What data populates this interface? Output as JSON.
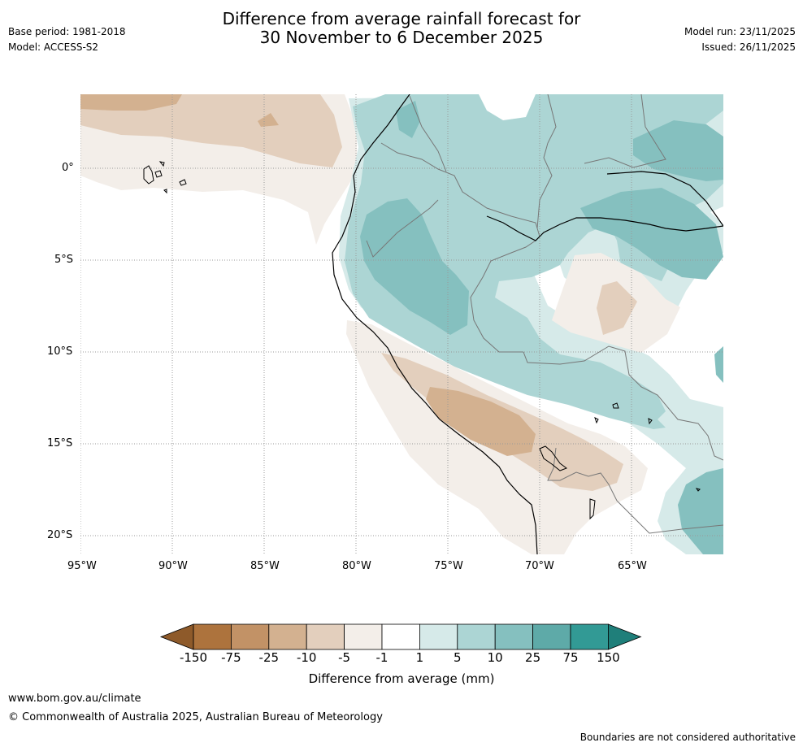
{
  "header": {
    "title_line1": "Difference from average rainfall forecast for",
    "title_line2": "30 November to 6 December 2025",
    "base_period": "Base period: 1981-2018",
    "model": "Model: ACCESS-S2",
    "model_run": "Model run: 23/11/2025",
    "issued": "Issued: 26/11/2025"
  },
  "map": {
    "lat_labels": [
      "0°",
      "5°S",
      "10°S",
      "15°S",
      "20°S"
    ],
    "lon_labels": [
      "95°W",
      "90°W",
      "85°W",
      "80°W",
      "75°W",
      "70°W",
      "65°W"
    ]
  },
  "colorbar": {
    "title": "Difference from average (mm)",
    "ticks": [
      "-150",
      "-75",
      "-25",
      "-10",
      "-5",
      "-1",
      "1",
      "5",
      "10",
      "25",
      "75",
      "150"
    ],
    "colors": [
      "#8e5a2a",
      "#ad733d",
      "#c29266",
      "#d3b190",
      "#e3cfbd",
      "#f3eee9",
      "#ffffff",
      "#d6eae9",
      "#acd5d4",
      "#85c0bf",
      "#5eaaa8",
      "#329a95",
      "#1f7f7a"
    ]
  },
  "footer": {
    "website": "www.bom.gov.au/climate",
    "copyright": "© Commonwealth of Australia 2025, Australian Bureau of Meteorology",
    "disclaimer": "Boundaries are not considered authoritative"
  }
}
